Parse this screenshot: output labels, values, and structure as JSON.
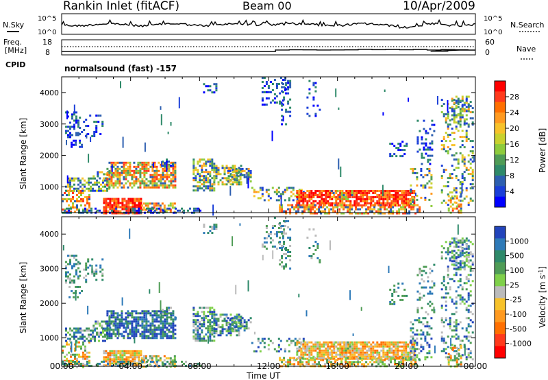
{
  "header": {
    "station": "Rankin Inlet (fitACF)",
    "beam": "Beam 00",
    "date": "10/Apr/2009"
  },
  "noise_panel": {
    "left_label": "N.Sky",
    "left_ticks": [
      "10^5",
      "10^0"
    ],
    "right_label": "N.Search",
    "right_ticks": [
      "10^5",
      "10^0"
    ]
  },
  "freq_panel": {
    "left_label_line1": "Freq.",
    "left_label_line2": "[MHz]",
    "left_ticks": [
      "18",
      "8"
    ],
    "right_label": "Nave",
    "right_ticks": [
      "60",
      "0"
    ]
  },
  "cpid": {
    "label": "CPID",
    "text": "normalsound (fast) -157"
  },
  "x_axis": {
    "ticks": [
      "00:00",
      "04:00",
      "08:00",
      "12:00",
      "16:00",
      "20:00",
      "00:00"
    ],
    "label": "Time UT"
  },
  "power_colorbar": {
    "title": "Power [dB]",
    "ticks": [
      "28",
      "24",
      "20",
      "16",
      "12",
      "8",
      "4"
    ],
    "colors": [
      "#ff0000",
      "#ff3a1c",
      "#ff6f00",
      "#ff9a20",
      "#f7c22a",
      "#c9d12e",
      "#8ecb3c",
      "#4f9c56",
      "#2f8a6a",
      "#2d5fb0",
      "#1b3fd8",
      "#0000ff"
    ]
  },
  "velocity_colorbar": {
    "title": "Velocity [m s^-1]",
    "ticks": [
      "1000",
      "500",
      "100",
      "25",
      "-25",
      "-100",
      "-500",
      "-1000"
    ],
    "colors": [
      "#2244bb",
      "#2e7ab8",
      "#2f8a6a",
      "#4f9c56",
      "#7fd04a",
      "#bbbbbb",
      "#f7c22a",
      "#ff9a20",
      "#ff6f00",
      "#ff3a1c",
      "#ff0000"
    ]
  },
  "chart_data": [
    {
      "type": "line",
      "title": "Rankin Inlet (fitACF)",
      "subtitle": "Beam 00",
      "ylabel": "N.Sky",
      "y2label": "N.Search",
      "x": [
        "00:00",
        "04:00",
        "08:00",
        "12:00",
        "16:00",
        "20:00",
        "00:00"
      ],
      "log_scale": true,
      "ylim_labels": [
        "10^0",
        "10^5"
      ]
    },
    {
      "type": "line",
      "ylabel": "Freq. [MHz]",
      "y2label": "Nave",
      "ylim": [
        8,
        18
      ],
      "y2lim": [
        0,
        60
      ],
      "segments_hours_freq": [
        [
          0,
          10.2
        ],
        [
          12.4,
          10.2
        ],
        [
          12.4,
          11.5
        ],
        [
          24,
          11.5
        ]
      ]
    },
    {
      "type": "heatmap",
      "ylabel": "Slant Range [km]",
      "xlabel": "Time UT",
      "ylim": [
        180,
        4500
      ],
      "yticks": [
        1000,
        2000,
        3000,
        4000
      ],
      "xlim_hours": [
        0,
        24
      ],
      "colorbar": "Power [dB]",
      "colorbar_range": [
        0,
        30
      ]
    },
    {
      "type": "heatmap",
      "ylabel": "Slant Range [km]",
      "xlabel": "Time UT",
      "ylim": [
        180,
        4500
      ],
      "yticks": [
        1000,
        2000,
        3000,
        4000
      ],
      "xlim_hours": [
        0,
        24
      ],
      "colorbar": "Velocity [m s^-1]",
      "colorbar_range": [
        -1000,
        1000
      ]
    }
  ]
}
